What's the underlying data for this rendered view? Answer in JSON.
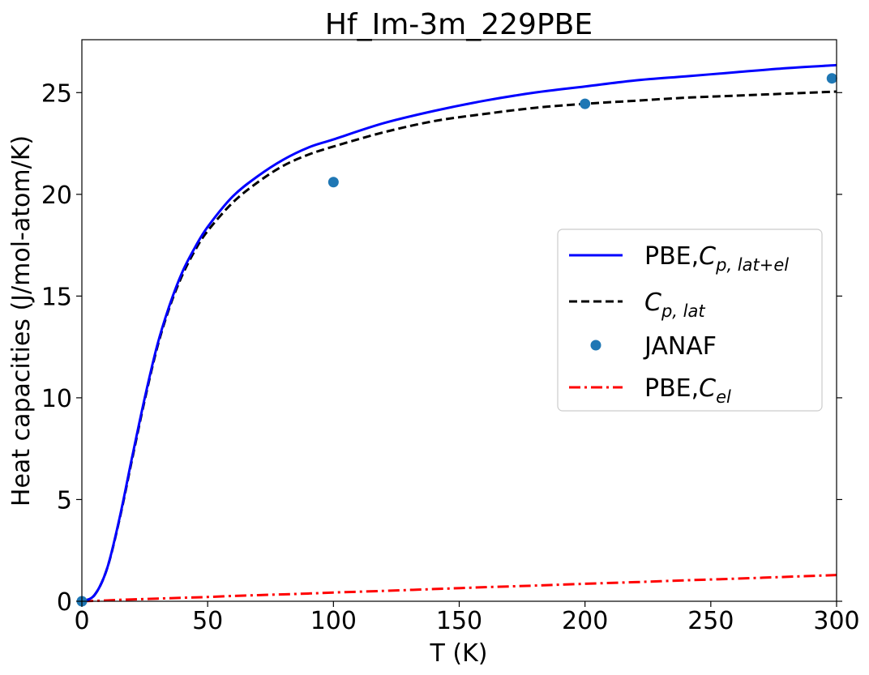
{
  "chart_data": {
    "type": "line",
    "title": "Hf_Im-3m_229PBE",
    "xlabel": "T (K)",
    "ylabel": "Heat capacities (J/mol-atom/K)",
    "xlim": [
      0,
      300
    ],
    "ylim": [
      0,
      27.6
    ],
    "xticks": [
      0,
      50,
      100,
      150,
      200,
      250,
      300
    ],
    "yticks": [
      0,
      5,
      10,
      15,
      20,
      25
    ],
    "grid": false,
    "legend_position": "center-right",
    "x": [
      0,
      5,
      10,
      15,
      20,
      25,
      30,
      35,
      40,
      45,
      50,
      60,
      70,
      80,
      90,
      100,
      120,
      140,
      160,
      180,
      200,
      220,
      240,
      260,
      280,
      300
    ],
    "series": [
      {
        "key": "total",
        "legend_prefix": "PBE,",
        "symbol": "C",
        "subscript": "p, lat+el",
        "style": "solid",
        "color": "#0000ff",
        "values": [
          0.0,
          0.3,
          1.6,
          4.1,
          7.1,
          10.0,
          12.6,
          14.6,
          16.2,
          17.4,
          18.4,
          19.9,
          20.9,
          21.7,
          22.3,
          22.7,
          23.5,
          24.1,
          24.6,
          25.0,
          25.3,
          25.6,
          25.8,
          26.0,
          26.2,
          26.35
        ]
      },
      {
        "key": "lattice",
        "legend_prefix": "",
        "symbol": "C",
        "subscript": "p, lat",
        "style": "dashed",
        "color": "#000000",
        "values": [
          0.0,
          0.3,
          1.6,
          4.05,
          7.0,
          9.9,
          12.5,
          14.5,
          16.05,
          17.25,
          18.2,
          19.6,
          20.6,
          21.4,
          21.95,
          22.35,
          23.05,
          23.6,
          23.95,
          24.25,
          24.45,
          24.6,
          24.75,
          24.85,
          24.95,
          25.05
        ]
      },
      {
        "key": "electronic",
        "legend_prefix": "PBE,",
        "symbol": "C",
        "subscript": "el",
        "style": "dashdot",
        "color": "#ff0000",
        "values": [
          0.0,
          0.02,
          0.04,
          0.07,
          0.09,
          0.11,
          0.13,
          0.15,
          0.17,
          0.19,
          0.21,
          0.26,
          0.3,
          0.34,
          0.38,
          0.43,
          0.51,
          0.6,
          0.69,
          0.77,
          0.86,
          0.94,
          1.03,
          1.11,
          1.2,
          1.29
        ]
      }
    ],
    "points": {
      "name": "JANAF",
      "color": "#1f77b4",
      "x": [
        0,
        100,
        200,
        298.15
      ],
      "y": [
        0.0,
        20.6,
        24.45,
        25.7
      ]
    }
  }
}
